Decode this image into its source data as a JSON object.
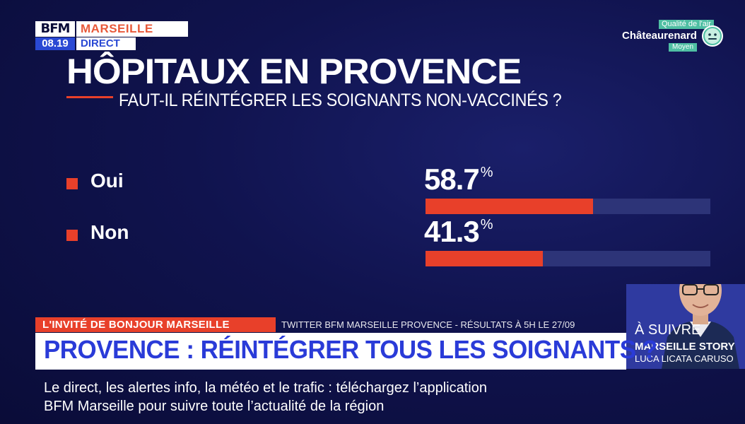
{
  "channel": {
    "logo_text": "BFM",
    "city": "MARSEILLE",
    "time": "08.19",
    "live_label": "DIRECT"
  },
  "air_quality": {
    "label": "Qualité de l'air",
    "city": "Châteaurenard",
    "level": "Moyen",
    "icon": "smiley-face-icon"
  },
  "poll": {
    "title": "HÔPITAUX EN PROVENCE",
    "question": "FAUT-IL RÉINTÉGRER LES SOIGNANTS NON-VACCINÉS ?",
    "options": [
      {
        "label": "Oui",
        "value": 58.7,
        "display": "58.7",
        "unit": "%"
      },
      {
        "label": "Non",
        "value": 41.3,
        "display": "41.3",
        "unit": "%"
      }
    ],
    "colors": {
      "accent": "#e8402a",
      "track": "#2d3478"
    }
  },
  "lower_third": {
    "tag": "L'INVITÉ DE BONJOUR MARSEILLE",
    "source": "TWITTER BFM MARSEILLE PROVENCE - RÉSULTATS À 5H LE 27/09",
    "headline": "PROVENCE : RÉINTÉGRER TOUS LES SOIGNANTS ?"
  },
  "ticker": {
    "line1": "Le direct, les alertes info, la météo et le trafic : téléchargez l’application",
    "line2": "BFM Marseille pour suivre toute l’actualité de la région"
  },
  "up_next": {
    "label": "À SUIVRE",
    "show": "MARSEILLE STORY",
    "host": "LUCA LICATA CARUSO"
  }
}
